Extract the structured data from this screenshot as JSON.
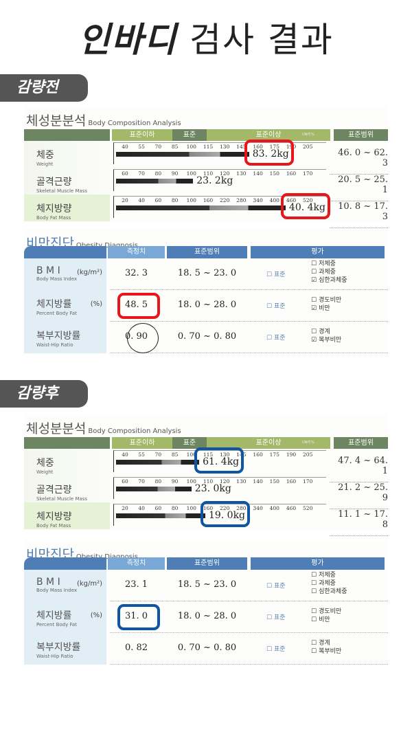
{
  "title": {
    "bold": "인바디",
    "light": "검사 결과"
  },
  "colors": {
    "green_dark": "#6d8560",
    "green_light": "#a4b86a",
    "blue": "#4f7db5",
    "blue_light": "#79a8d6",
    "red_box": "#e8161b",
    "blue_box": "#0e55a3"
  },
  "sections": [
    {
      "badge": "감량전",
      "body": {
        "title": "체성분분석",
        "title_en": "Body Composition Analysis",
        "headers": [
          "표준이하",
          "표준",
          "표준이상",
          "표준범위"
        ],
        "unit": "UNIT:%",
        "rows": [
          {
            "ko": "체중",
            "en": "Weight",
            "ticks": [
              "40",
              "55",
              "70",
              "85",
              "100",
              "115",
              "130",
              "145",
              "160",
              "175",
              "190",
              "205"
            ],
            "bar_level": 152,
            "value": "83. 2kg",
            "range": "46. 0 ~ 62. 3",
            "highlight": true
          },
          {
            "ko": "골격근량",
            "en": "Skeletal Muscle Mass",
            "ticks": [
              "60",
              "70",
              "80",
              "90",
              "100",
              "110",
              "120",
              "130",
              "140",
              "150",
              "160",
              "170"
            ],
            "bar_level": 101,
            "value": "23. 2kg",
            "range": "20. 5 ~ 25. 1",
            "highlight": false
          },
          {
            "ko": "체지방량",
            "en": "Body Fat Mass",
            "ticks": [
              "20",
              "40",
              "60",
              "80",
              "100",
              "160",
              "220",
              "280",
              "340",
              "400",
              "460",
              "520"
            ],
            "bar_level": 440,
            "value": "40. 4kg",
            "range": "10. 8 ~ 17. 3",
            "highlight": true
          }
        ]
      },
      "obesity": {
        "title": "비만진단",
        "title_en": "Obesity Diagnosis",
        "headers": [
          "측정치",
          "표준범위",
          "평가"
        ],
        "rows": [
          {
            "ko": "B M I",
            "en": "Body Mass Index",
            "unit": "(kg/m²)",
            "value": "32. 3",
            "range": "18. 5 ~ 23. 0",
            "standard": "표준",
            "options": [
              {
                "label": "저체중",
                "checked": false
              },
              {
                "label": "과체중",
                "checked": false
              },
              {
                "label": "심한과체중",
                "checked": true
              }
            ],
            "highlight": false
          },
          {
            "ko": "체지방률",
            "en": "Percent Body Fat",
            "unit": "(%)",
            "value": "48. 5",
            "range": "18. 0 ~ 28. 0",
            "standard": "표준",
            "options": [
              {
                "label": "경도비만",
                "checked": false
              },
              {
                "label": "비만",
                "checked": true
              }
            ],
            "highlight": true
          },
          {
            "ko": "복부지방률",
            "en": "Waist-Hip Ratio",
            "unit": "",
            "value": "0. 90",
            "range": "0. 70 ~ 0. 80",
            "standard": "표준",
            "options": [
              {
                "label": "경계",
                "checked": false
              },
              {
                "label": "복부비만",
                "checked": true
              }
            ],
            "highlight": false,
            "circled": true
          }
        ]
      }
    },
    {
      "badge": "감량후",
      "body": {
        "title": "체성분분석",
        "title_en": "Body Composition Analysis",
        "headers": [
          "표준이하",
          "표준",
          "표준이상",
          "표준범위"
        ],
        "unit": "UNIT:%",
        "rows": [
          {
            "ko": "체중",
            "en": "Weight",
            "ticks": [
              "40",
              "55",
              "70",
              "85",
              "100",
              "115",
              "130",
              "145",
              "160",
              "175",
              "190",
              "205"
            ],
            "bar_level": 107,
            "value": "61. 4kg",
            "range": "47. 4 ~ 64. 1",
            "highlight": true
          },
          {
            "ko": "골격근량",
            "en": "Skeletal Muscle Mass",
            "ticks": [
              "60",
              "70",
              "80",
              "90",
              "100",
              "110",
              "120",
              "130",
              "140",
              "150",
              "160",
              "170"
            ],
            "bar_level": 100,
            "value": "23. 0kg",
            "range": "21. 2 ~ 25. 9",
            "highlight": false
          },
          {
            "ko": "체지방량",
            "en": "Body Fat Mass",
            "ticks": [
              "20",
              "40",
              "60",
              "80",
              "100",
              "160",
              "220",
              "280",
              "340",
              "400",
              "460",
              "520"
            ],
            "bar_level": 150,
            "value": "19. 0kg",
            "range": "11. 1 ~ 17. 8",
            "highlight": true
          }
        ]
      },
      "obesity": {
        "title": "비만진단",
        "title_en": "Obesity Diagnosis",
        "headers": [
          "측정치",
          "표준범위",
          "평가"
        ],
        "rows": [
          {
            "ko": "B M I",
            "en": "Body Mass Index",
            "unit": "(kg/m²)",
            "value": "23. 1",
            "range": "18. 5 ~ 23. 0",
            "standard": "표준",
            "options": [
              {
                "label": "저체중",
                "checked": false
              },
              {
                "label": "과체중",
                "checked": false
              },
              {
                "label": "심한과체중",
                "checked": false
              }
            ],
            "highlight": false
          },
          {
            "ko": "체지방률",
            "en": "Percent Body Fat",
            "unit": "(%)",
            "value": "31. 0",
            "range": "18. 0 ~ 28. 0",
            "standard": "표준",
            "options": [
              {
                "label": "경도비만",
                "checked": false
              },
              {
                "label": "비만",
                "checked": false
              }
            ],
            "highlight": true
          },
          {
            "ko": "복부지방률",
            "en": "Waist-Hip Ratio",
            "unit": "",
            "value": "0. 82",
            "range": "0. 70 ~ 0. 80",
            "standard": "표준",
            "options": [
              {
                "label": "경계",
                "checked": false
              },
              {
                "label": "복부비만",
                "checked": false
              }
            ],
            "highlight": false
          }
        ]
      }
    }
  ]
}
